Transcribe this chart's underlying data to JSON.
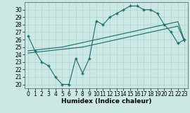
{
  "bg_color": "#cce8e5",
  "grid_color": "#aed4d0",
  "line_color": "#1a6b6a",
  "line_width": 0.8,
  "marker_size": 2.0,
  "xlabel": "Humidex (Indice chaleur)",
  "xlabel_fontsize": 6.5,
  "tick_fontsize": 5.5,
  "ylim": [
    19.5,
    31.0
  ],
  "xlim": [
    -0.5,
    23.5
  ],
  "yticks": [
    20,
    21,
    22,
    23,
    24,
    25,
    26,
    27,
    28,
    29,
    30
  ],
  "xticks": [
    0,
    1,
    2,
    3,
    4,
    5,
    6,
    7,
    8,
    9,
    10,
    11,
    12,
    13,
    14,
    15,
    16,
    17,
    18,
    19,
    20,
    21,
    22,
    23
  ],
  "line1_x": [
    0,
    1,
    2,
    3,
    4,
    5,
    6,
    7,
    8,
    9,
    10,
    11,
    12,
    13,
    14,
    15,
    16,
    17,
    18,
    19,
    20,
    21,
    22,
    23
  ],
  "line1_y": [
    26.5,
    24.5,
    23.0,
    22.5,
    21.0,
    20.0,
    20.0,
    23.5,
    21.5,
    23.5,
    28.5,
    28.0,
    29.0,
    29.5,
    30.0,
    30.5,
    30.5,
    30.0,
    30.0,
    29.5,
    28.0,
    27.0,
    25.5,
    26.0
  ],
  "line2_x": [
    0,
    1,
    2,
    3,
    4,
    5,
    6,
    7,
    8,
    9,
    10,
    11,
    12,
    13,
    14,
    15,
    16,
    17,
    18,
    19,
    20,
    21,
    22,
    23
  ],
  "line2_y": [
    24.5,
    24.6,
    24.7,
    24.8,
    24.9,
    25.0,
    25.2,
    25.4,
    25.6,
    25.8,
    26.0,
    26.2,
    26.4,
    26.6,
    26.8,
    27.0,
    27.2,
    27.4,
    27.6,
    27.8,
    28.0,
    28.2,
    28.4,
    25.8
  ],
  "line3_x": [
    0,
    1,
    2,
    3,
    4,
    5,
    6,
    7,
    8,
    9,
    10,
    11,
    12,
    13,
    14,
    15,
    16,
    17,
    18,
    19,
    20,
    21,
    22,
    23
  ],
  "line3_y": [
    24.2,
    24.3,
    24.4,
    24.5,
    24.6,
    24.7,
    24.8,
    24.9,
    25.0,
    25.2,
    25.4,
    25.6,
    25.8,
    26.0,
    26.2,
    26.4,
    26.6,
    26.8,
    27.0,
    27.2,
    27.4,
    27.6,
    27.8,
    25.7
  ]
}
